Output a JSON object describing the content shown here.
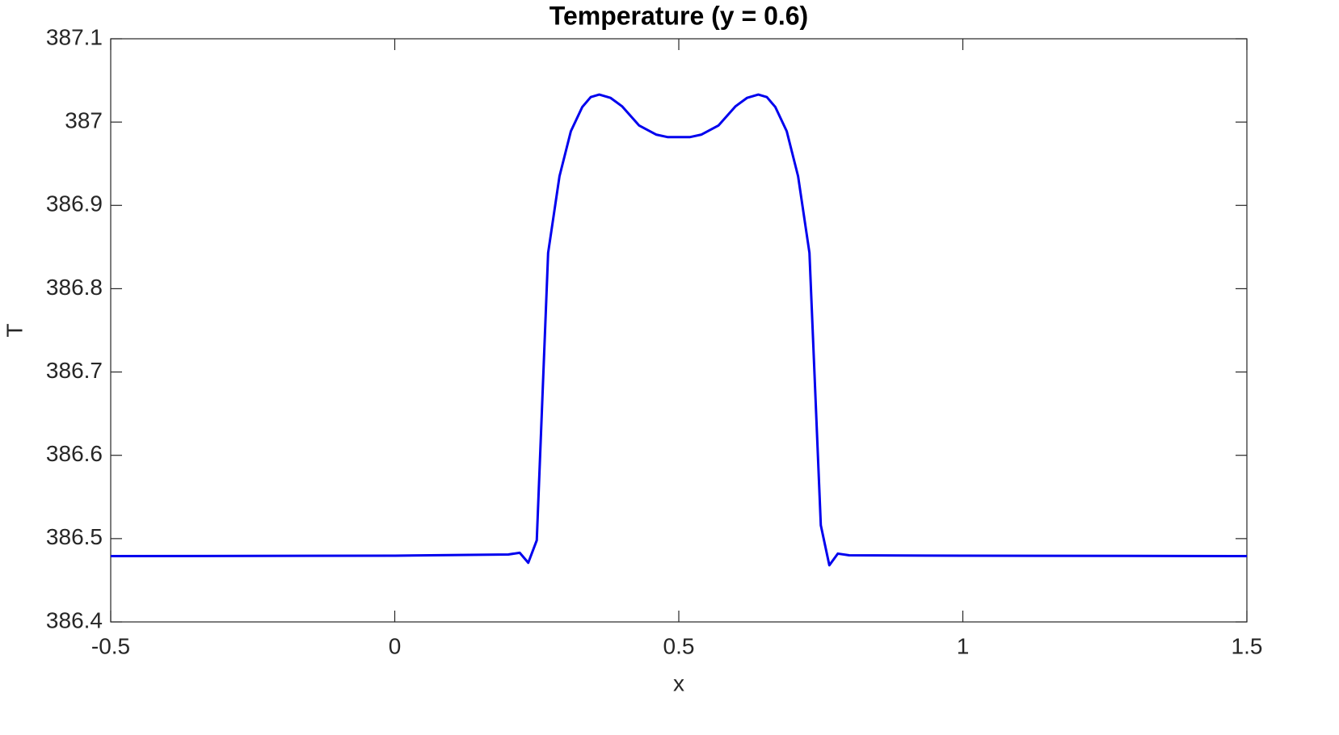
{
  "chart_data": {
    "type": "line",
    "title": "Temperature (y = 0.6)",
    "x_label": "x",
    "y_label": "T",
    "x": [
      -0.5,
      0,
      0.2,
      0.22,
      0.235,
      0.25,
      0.27,
      0.29,
      0.31,
      0.33,
      0.345,
      0.36,
      0.38,
      0.4,
      0.43,
      0.46,
      0.48,
      0.5,
      0.52,
      0.54,
      0.57,
      0.6,
      0.62,
      0.64,
      0.655,
      0.67,
      0.69,
      0.71,
      0.73,
      0.75,
      0.765,
      0.78,
      0.8,
      1,
      1.5
    ],
    "series": [
      {
        "color": "#0000ee",
        "values": [
          386.479,
          386.4795,
          386.481,
          386.483,
          386.471,
          386.498,
          386.843,
          386.935,
          386.989,
          387.018,
          387.03,
          387.033,
          387.029,
          387.019,
          386.996,
          386.985,
          386.982,
          386.982,
          386.982,
          386.985,
          386.996,
          387.019,
          387.029,
          387.033,
          387.03,
          387.018,
          386.989,
          386.935,
          386.843,
          386.516,
          386.468,
          386.482,
          386.48,
          386.4795,
          386.479
        ]
      }
    ],
    "xlim": [
      -0.5,
      1.5
    ],
    "xticks": [
      -0.5,
      0,
      0.5,
      1,
      1.5
    ],
    "ylim": [
      386.4,
      387.1
    ],
    "yticks": [
      386.4,
      386.5,
      386.6,
      386.7,
      386.8,
      386.9,
      387,
      387.1
    ],
    "grid": false
  }
}
